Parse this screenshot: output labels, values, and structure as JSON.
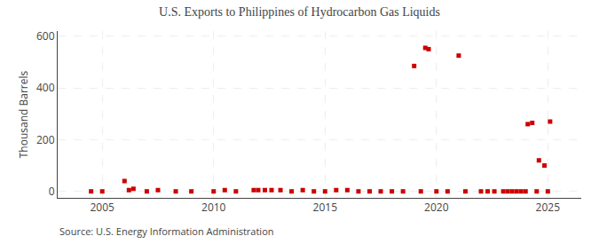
{
  "chart_data": {
    "type": "scatter",
    "title": "U.S. Exports to Philippines of Hydrocarbon Gas Liquids",
    "ylabel": "Thousand Barrels",
    "annotations": [
      "Source: U.S. Energy Information Administration"
    ],
    "color": "#cc0000",
    "marker": "square",
    "grid": true,
    "xlim": [
      2003.0,
      2026.5
    ],
    "ylim": [
      -25,
      620
    ],
    "xticks": [
      2005,
      2010,
      2015,
      2020,
      2025
    ],
    "yticks": [
      0,
      200,
      400,
      600
    ],
    "x": [
      2004.5,
      2005.0,
      2006.0,
      2006.2,
      2006.4,
      2007.0,
      2007.5,
      2008.3,
      2009.0,
      2010.0,
      2010.5,
      2011.0,
      2011.8,
      2012.0,
      2012.3,
      2012.6,
      2013.0,
      2013.5,
      2014.0,
      2014.5,
      2015.0,
      2015.5,
      2016.0,
      2016.5,
      2017.0,
      2017.5,
      2018.0,
      2018.5,
      2019.0,
      2019.3,
      2019.5,
      2019.65,
      2020.0,
      2020.5,
      2021.0,
      2021.3,
      2022.0,
      2022.3,
      2022.6,
      2023.0,
      2023.2,
      2023.4,
      2023.6,
      2023.8,
      2024.0,
      2024.1,
      2024.3,
      2024.5,
      2024.6,
      2024.85,
      2025.0,
      2025.1
    ],
    "values": [
      0,
      0,
      40,
      5,
      10,
      0,
      5,
      0,
      0,
      0,
      5,
      0,
      5,
      5,
      5,
      5,
      5,
      0,
      5,
      0,
      0,
      5,
      5,
      0,
      0,
      0,
      0,
      0,
      485,
      0,
      555,
      550,
      0,
      0,
      525,
      0,
      0,
      0,
      0,
      0,
      0,
      0,
      0,
      0,
      0,
      260,
      265,
      0,
      120,
      100,
      0,
      270
    ]
  }
}
